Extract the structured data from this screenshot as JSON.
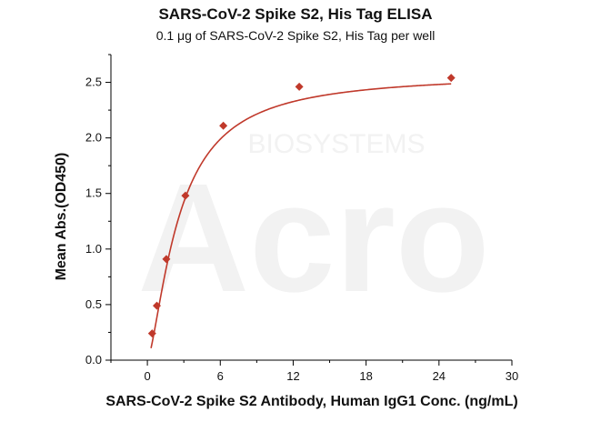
{
  "chart_data": {
    "type": "scatter",
    "title": "SARS-CoV-2 Spike S2, His Tag ELISA",
    "subtitle": "0.1 μg of SARS-CoV-2 Spike S2, His Tag per well",
    "xlabel": "SARS-CoV-2 Spike S2 Antibody, Human IgG1 Conc. (ng/mL)",
    "ylabel": "Mean Abs.(OD450)",
    "xlim": [
      -3,
      30
    ],
    "ylim": [
      0,
      2.75
    ],
    "xticks": [
      0,
      6,
      12,
      18,
      24,
      30
    ],
    "yticks": [
      0.0,
      0.5,
      1.0,
      1.5,
      2.0,
      2.5
    ],
    "ytick_labels": [
      "0.0",
      "0.5",
      "1.0",
      "1.5",
      "2.0",
      "2.5"
    ],
    "grid": false,
    "legend": "none",
    "series": [
      {
        "x": [
          0.39,
          0.78,
          1.56,
          3.13,
          6.25,
          12.5,
          25
        ],
        "y": [
          0.24,
          0.49,
          0.91,
          1.48,
          2.11,
          2.46,
          2.54
        ],
        "color": "#c0392b",
        "marker": "diamond",
        "fit": "four-parameter logistic curve"
      }
    ]
  },
  "watermark": {
    "text": "Acro",
    "subtext": "BIOSYSTEMS"
  }
}
